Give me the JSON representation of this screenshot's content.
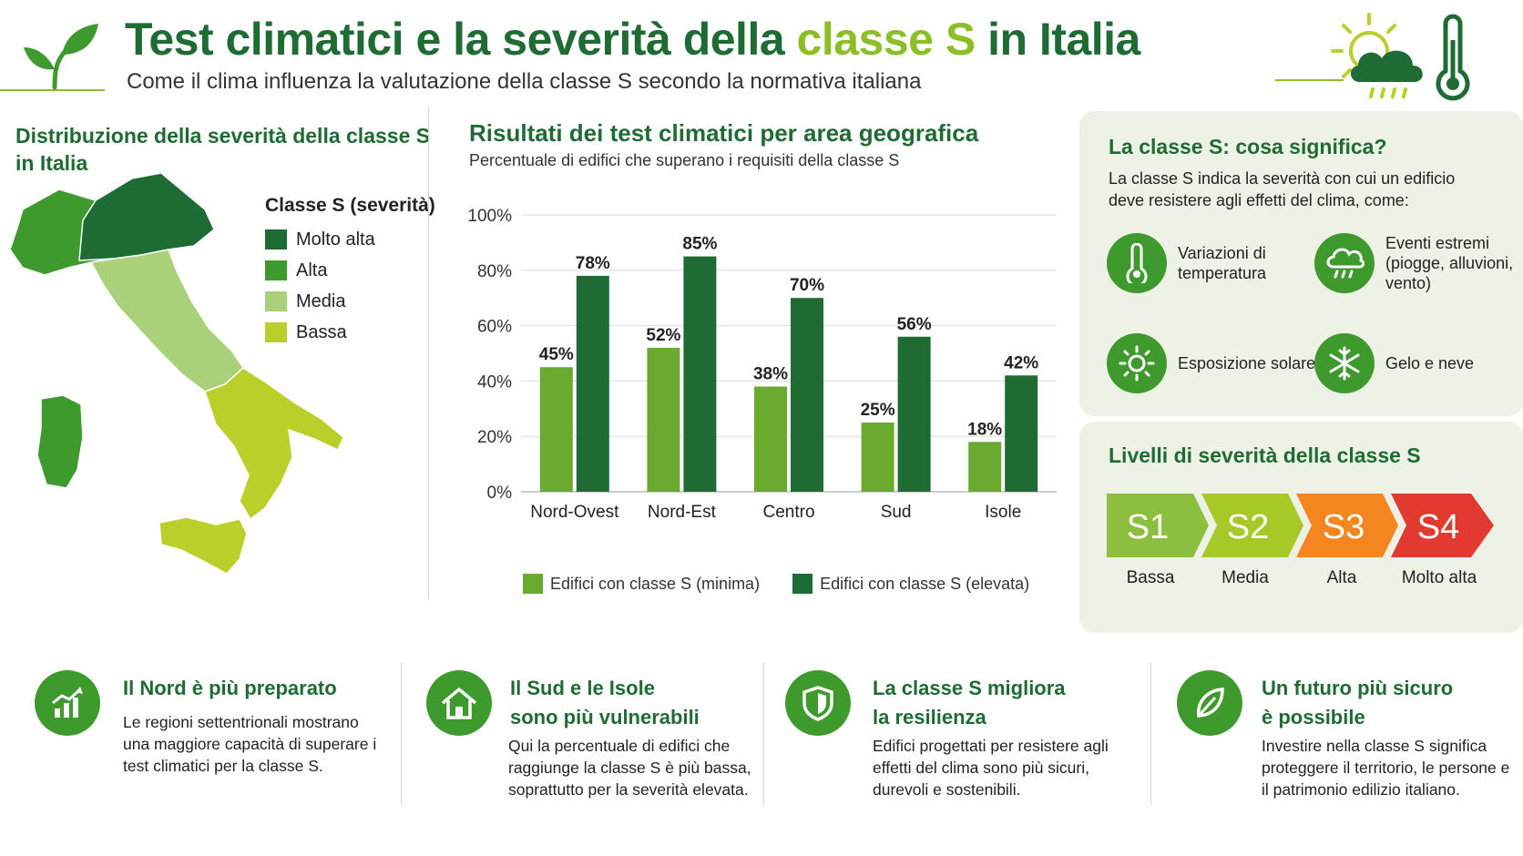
{
  "header": {
    "title_part1": "Test climatici e la severità della ",
    "title_highlight": "classe S",
    "title_part2": " in Italia",
    "subtitle": "Come il clima influenza la valutazione della classe S secondo la normativa italiana",
    "logo_icon": "sprout-icon",
    "weather_icons": [
      "sun-icon",
      "cloud-rain-icon",
      "thermometer-icon"
    ]
  },
  "map": {
    "title_line1": "Distribuzione della severità della classe S",
    "title_line2": "in Italia",
    "legend_title": "Classe S (severità)",
    "legend": [
      {
        "label": "Molto alta",
        "color": "#1e6b34"
      },
      {
        "label": "Alta",
        "color": "#3f9a2d"
      },
      {
        "label": "Media",
        "color": "#a9d17a"
      },
      {
        "label": "Bassa",
        "color": "#b9cf2a"
      }
    ]
  },
  "chart": {
    "title": "Risultati dei test climatici per area geografica",
    "subtitle": "Percentuale di edifici che superano i requisiti della classe S"
  },
  "chart_data": {
    "type": "bar",
    "categories": [
      "Nord-Ovest",
      "Nord-Est",
      "Centro",
      "Sud",
      "Isole"
    ],
    "series": [
      {
        "name": "Edifici con classe S (minima)",
        "values": [
          45,
          52,
          38,
          25,
          18
        ],
        "color": "#6aaa2f"
      },
      {
        "name": "Edifici con classe S (elevata)",
        "values": [
          78,
          85,
          70,
          56,
          42
        ],
        "color": "#1e6b34"
      }
    ],
    "value_suffix": "%",
    "yticks": [
      "0%",
      "20%",
      "40%",
      "60%",
      "80%",
      "100%"
    ],
    "ylim": [
      0,
      100
    ],
    "grid": true,
    "legend_position": "bottom"
  },
  "info_panel": {
    "title": "La classe S: cosa significa?",
    "text": "La classe S indica la severità con cui un edificio deve resistere agli effetti del clima, come:",
    "features": [
      {
        "icon": "thermometer-icon",
        "label": "Variazioni di temperatura"
      },
      {
        "icon": "cloud-rain-icon",
        "label": "Eventi estremi (piogge, alluvioni, vento)"
      },
      {
        "icon": "sun-icon",
        "label": "Esposizione solare"
      },
      {
        "icon": "snowflake-icon",
        "label": "Gelo e neve"
      }
    ]
  },
  "levels": {
    "title": "Livelli di severità della classe S",
    "items": [
      {
        "code": "S1",
        "label": "Bassa",
        "color": "#8cbf3f"
      },
      {
        "code": "S2",
        "label": "Media",
        "color": "#a6c928"
      },
      {
        "code": "S3",
        "label": "Alta",
        "color": "#f3861f"
      },
      {
        "code": "S4",
        "label": "Molto alta",
        "color": "#e23a31"
      }
    ]
  },
  "bottom": [
    {
      "icon": "chart-growth-icon",
      "title_line1": "Il Nord è più preparato",
      "title_line2": "",
      "text": "Le regioni settentrionali mostrano una maggiore capacità di superare i test climatici per la classe S."
    },
    {
      "icon": "house-icon",
      "title_line1": "Il Sud e le Isole",
      "title_line2": "sono più vulnerabili",
      "text": "Qui la percentuale di edifici che raggiunge la classe S è più bassa, soprattutto per la severità elevata."
    },
    {
      "icon": "shield-icon",
      "title_line1": "La classe S migliora",
      "title_line2": "la resilienza",
      "text": "Edifici progettati per resistere agli effetti del clima sono più sicuri, durevoli e sostenibili."
    },
    {
      "icon": "leaf-icon",
      "title_line1": "Un futuro più sicuro",
      "title_line2": "è possibile",
      "text": "Investire nella classe S significa proteggere il territorio, le persone e il patrimonio edilizio italiano."
    }
  ]
}
